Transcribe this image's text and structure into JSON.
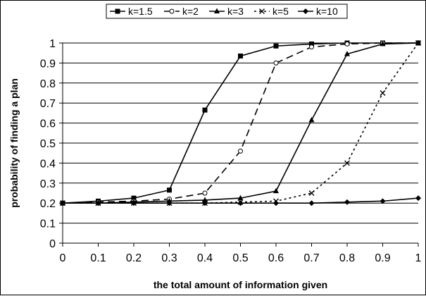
{
  "chart_data": {
    "type": "line",
    "title": "",
    "xlabel": "the total amount of information given",
    "ylabel": "probability of finding a plan",
    "x": [
      0,
      0.1,
      0.2,
      0.3,
      0.4,
      0.5,
      0.6,
      0.7,
      0.8,
      0.9,
      1
    ],
    "xlim": [
      0,
      1
    ],
    "ylim": [
      0,
      1
    ],
    "x_ticks": [
      "0",
      "0.1",
      "0.2",
      "0.3",
      "0.4",
      "0.5",
      "0.6",
      "0.7",
      "0.8",
      "0.9",
      "1"
    ],
    "y_ticks": [
      "0",
      "0.1",
      "0.2",
      "0.3",
      "0.4",
      "0.5",
      "0.6",
      "0.7",
      "0.8",
      "0.9",
      "1"
    ],
    "grid": "horizontal",
    "legend_position": "top",
    "series": [
      {
        "name": "k=1.5",
        "values": [
          0.2,
          0.21,
          0.225,
          0.265,
          0.665,
          0.935,
          0.985,
          0.995,
          1.0,
          1.0,
          1.0
        ],
        "marker": "square",
        "dash": "solid",
        "color": "#000000"
      },
      {
        "name": "k=2",
        "values": [
          0.2,
          0.205,
          0.21,
          0.22,
          0.25,
          0.46,
          0.9,
          0.98,
          0.995,
          1.0,
          1.0
        ],
        "marker": "circle-open",
        "dash": "longdash",
        "color": "#000000"
      },
      {
        "name": "k=3",
        "values": [
          0.2,
          0.2,
          0.205,
          0.21,
          0.215,
          0.225,
          0.26,
          0.615,
          0.945,
          0.995,
          1.0
        ],
        "marker": "triangle",
        "dash": "solid",
        "color": "#000000"
      },
      {
        "name": "k=5",
        "values": [
          0.2,
          0.2,
          0.2,
          0.2,
          0.2,
          0.205,
          0.21,
          0.25,
          0.4,
          0.75,
          1.0
        ],
        "marker": "x",
        "dash": "dotted",
        "color": "#000000"
      },
      {
        "name": "k=10",
        "values": [
          0.2,
          0.2,
          0.2,
          0.2,
          0.2,
          0.2,
          0.2,
          0.2,
          0.205,
          0.21,
          0.225
        ],
        "marker": "diamond",
        "dash": "solid",
        "color": "#000000"
      }
    ]
  }
}
